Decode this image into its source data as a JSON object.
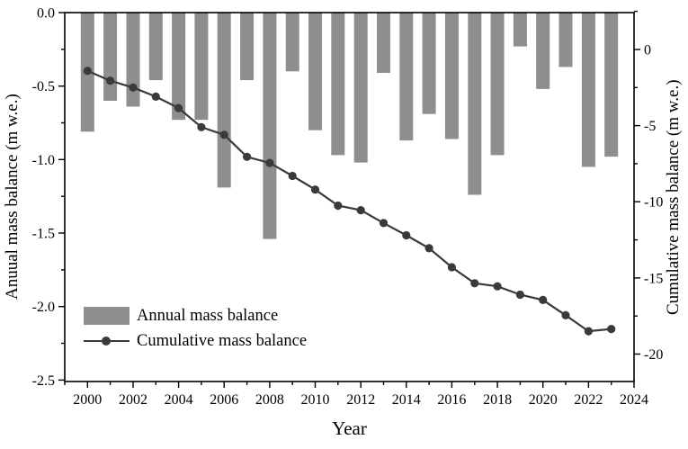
{
  "chart_data": {
    "type": "bar",
    "subtype": "bar+line dual-axis",
    "xlabel": "Year",
    "ylabel_left": "Anuual mass balance (m w.e.)",
    "ylabel_right": "Cumulative mass balance (m w.e.)",
    "x_years": [
      2000,
      2001,
      2002,
      2003,
      2004,
      2005,
      2006,
      2007,
      2008,
      2009,
      2010,
      2011,
      2012,
      2013,
      2014,
      2015,
      2016,
      2017,
      2018,
      2019,
      2020,
      2021,
      2022,
      2023
    ],
    "series": [
      {
        "name": "Annual mass balance",
        "type": "bar",
        "axis": "left",
        "color": "#8e8e8e",
        "values": [
          -0.81,
          -0.6,
          -0.64,
          -0.46,
          -0.73,
          -0.73,
          -1.19,
          -0.46,
          -1.54,
          -0.4,
          -0.8,
          -0.97,
          -1.02,
          -0.41,
          -0.87,
          -0.69,
          -0.86,
          -1.24,
          -0.97,
          -0.23,
          -0.52,
          -0.37,
          -1.05,
          -0.98
        ]
      },
      {
        "name": "Cumulative mass balance",
        "type": "line",
        "axis": "right",
        "color": "#3a3a3a",
        "values": [
          -1.4,
          -2.05,
          -2.5,
          -3.1,
          -3.85,
          -5.1,
          -5.6,
          -7.05,
          -7.45,
          -8.3,
          -9.2,
          -10.25,
          -10.55,
          -11.4,
          -12.2,
          -13.05,
          -14.3,
          -15.35,
          -15.55,
          -16.1,
          -16.45,
          -17.45,
          -18.5,
          -18.35
        ]
      }
    ],
    "xlim": [
      1999,
      2024
    ],
    "left_ylim": [
      0,
      -2.51
    ],
    "right_ylim": [
      2.42,
      -21.8
    ],
    "x_major_ticks": [
      2000,
      2002,
      2004,
      2006,
      2008,
      2010,
      2012,
      2014,
      2016,
      2018,
      2020,
      2022,
      2024
    ],
    "x_minor_ticks": [
      1999,
      2001,
      2003,
      2005,
      2007,
      2009,
      2011,
      2013,
      2015,
      2017,
      2019,
      2021,
      2023
    ],
    "left_major_ticks": [
      0,
      -0.5,
      -1.0,
      -1.5,
      -2.0,
      -2.5
    ],
    "left_major_labels": [
      "0.0",
      "-0.5",
      "-1.0",
      "-1.5",
      "-2.0",
      "-2.5"
    ],
    "left_minor_ticks": [
      -0.25,
      -0.75,
      -1.25,
      -1.75,
      -2.25
    ],
    "right_major_ticks": [
      0,
      -5,
      -10,
      -15,
      -20
    ],
    "right_major_labels": [
      "0",
      "-5",
      "-10",
      "-15",
      "-20"
    ],
    "right_minor_ticks": [
      2.5,
      -2.5,
      -7.5,
      -12.5,
      -17.5
    ],
    "legend": {
      "position": "lower left",
      "items": [
        "Annual mass balance",
        "Cumulative mass balance"
      ]
    },
    "colors": {
      "bar": "#8e8e8e",
      "line": "#3a3a3a",
      "frame": "#000000",
      "background": "#ffffff"
    },
    "grid": "off"
  }
}
